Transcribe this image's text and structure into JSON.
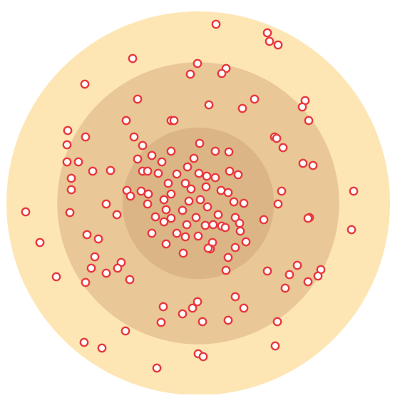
{
  "colors": {
    "outer_ring": "#fde6b4",
    "middle_ring": "#e9c796",
    "inner_ring": "#dcb587",
    "dot_stroke": "#e8383d",
    "dot_fill": "#ffffff"
  },
  "rings": [
    {
      "name": "outer-ring",
      "relative_radius": 1.0
    },
    {
      "name": "middle-ring",
      "relative_radius": 0.735
    },
    {
      "name": "inner-ring",
      "relative_radius": 0.395
    }
  ],
  "point_count": 202
}
